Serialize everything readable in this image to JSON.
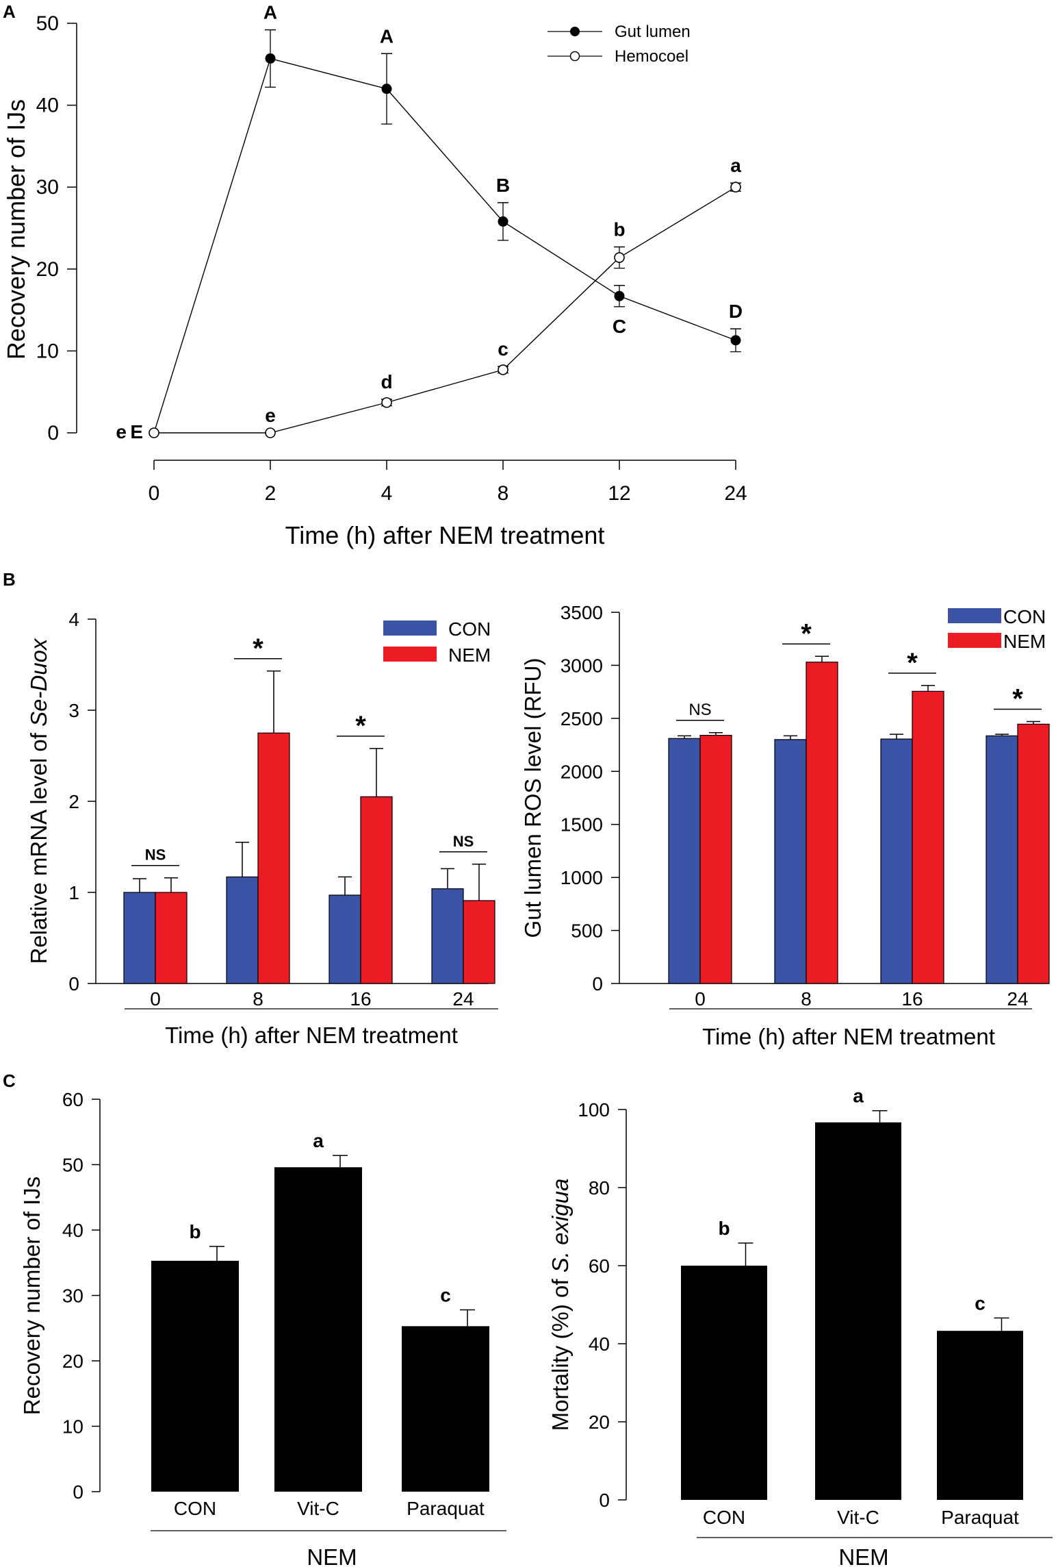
{
  "chart_data": [
    {
      "id": "A",
      "panel_label": "A",
      "type": "line",
      "categories": [
        "0",
        "2",
        "4",
        "8",
        "12",
        "24"
      ],
      "xlabel": "Time (h) after NEM treatment",
      "ylabel": "Recovery number of IJs",
      "ylim": [
        0,
        50
      ],
      "yticks": [
        "0",
        "10",
        "20",
        "30",
        "40",
        "50"
      ],
      "series": [
        {
          "name": "Gut lumen",
          "marker": "filled",
          "values": [
            0,
            45.7,
            42.0,
            25.8,
            16.7,
            11.3
          ],
          "errors": [
            0,
            3.5,
            4.3,
            2.3,
            1.3,
            1.4
          ],
          "letters": [
            "E",
            "A",
            "A",
            "B",
            "C",
            "D"
          ],
          "letter_pos": [
            "left",
            "above",
            "above",
            "above",
            "below",
            "above"
          ]
        },
        {
          "name": "Hemocoel",
          "marker": "open",
          "values": [
            0,
            0,
            3.7,
            7.7,
            21.4,
            30.0
          ],
          "errors": [
            0,
            0,
            0.4,
            0.4,
            1.3,
            0.5
          ],
          "letters": [
            "e",
            "e",
            "d",
            "c",
            "b",
            "a"
          ],
          "letter_pos": [
            "left",
            "above",
            "above",
            "above",
            "above",
            "above"
          ]
        }
      ],
      "legend": "top-right"
    },
    {
      "id": "B1",
      "panel_label": "B",
      "type": "bar",
      "categories": [
        "0",
        "8",
        "16",
        "24"
      ],
      "xlabel": "Time (h) after NEM treatment",
      "ylabel_parts": [
        "Relative mRNA level of ",
        "Se-Duox"
      ],
      "ylim": [
        0,
        4
      ],
      "yticks": [
        "0",
        "1",
        "2",
        "3",
        "4"
      ],
      "series": [
        {
          "name": "CON",
          "color": "#3a53a4",
          "values": [
            1.0,
            1.17,
            0.97,
            1.04
          ],
          "errors": [
            0.15,
            0.38,
            0.2,
            0.22
          ]
        },
        {
          "name": "NEM",
          "color": "#ed1c24",
          "values": [
            1.0,
            2.75,
            2.05,
            0.91
          ],
          "errors": [
            0.16,
            0.68,
            0.53,
            0.4
          ]
        }
      ],
      "significance": [
        "NS",
        "*",
        "*",
        "NS"
      ],
      "legend": "top-right"
    },
    {
      "id": "B2",
      "type": "bar",
      "categories": [
        "0",
        "8",
        "16",
        "24"
      ],
      "xlabel": "Time (h) after NEM treatment",
      "ylabel": "Gut lumen ROS level (RFU)",
      "ylim": [
        0,
        3500
      ],
      "yticks": [
        "0",
        "500",
        "1000",
        "1500",
        "2000",
        "2500",
        "3000",
        "3500"
      ],
      "series": [
        {
          "name": "CON",
          "color": "#3a53a4",
          "values": [
            2310,
            2300,
            2305,
            2335
          ],
          "errors": [
            25,
            35,
            45,
            15
          ]
        },
        {
          "name": "NEM",
          "color": "#ed1c24",
          "values": [
            2340,
            3030,
            2755,
            2445
          ],
          "errors": [
            25,
            55,
            55,
            25
          ]
        }
      ],
      "significance": [
        "NS",
        "*",
        "*",
        "*"
      ],
      "legend": "top-right"
    },
    {
      "id": "C1",
      "panel_label": "C",
      "type": "bar",
      "categories": [
        "CON",
        "Vit-C",
        "Paraquat"
      ],
      "group_label": "NEM",
      "ylabel": "Recovery number of IJs",
      "ylim": [
        0,
        60
      ],
      "yticks": [
        "0",
        "10",
        "20",
        "30",
        "40",
        "50",
        "60"
      ],
      "color": "#000000",
      "values": [
        35.3,
        49.6,
        25.3
      ],
      "errors": [
        2.2,
        1.8,
        2.5
      ],
      "letters": [
        "b",
        "a",
        "c"
      ]
    },
    {
      "id": "C2",
      "type": "bar",
      "categories": [
        "CON",
        "Vit-C",
        "Paraquat"
      ],
      "group_label": "NEM",
      "ylabel_parts": [
        "Mortality (%) of ",
        "S. exigua"
      ],
      "ylim": [
        0,
        100
      ],
      "yticks": [
        "0",
        "20",
        "40",
        "60",
        "80",
        "100"
      ],
      "color": "#000000",
      "values": [
        60,
        96.7,
        43.3
      ],
      "errors": [
        5.8,
        3.0,
        3.3
      ],
      "letters": [
        "b",
        "a",
        "c"
      ]
    }
  ]
}
